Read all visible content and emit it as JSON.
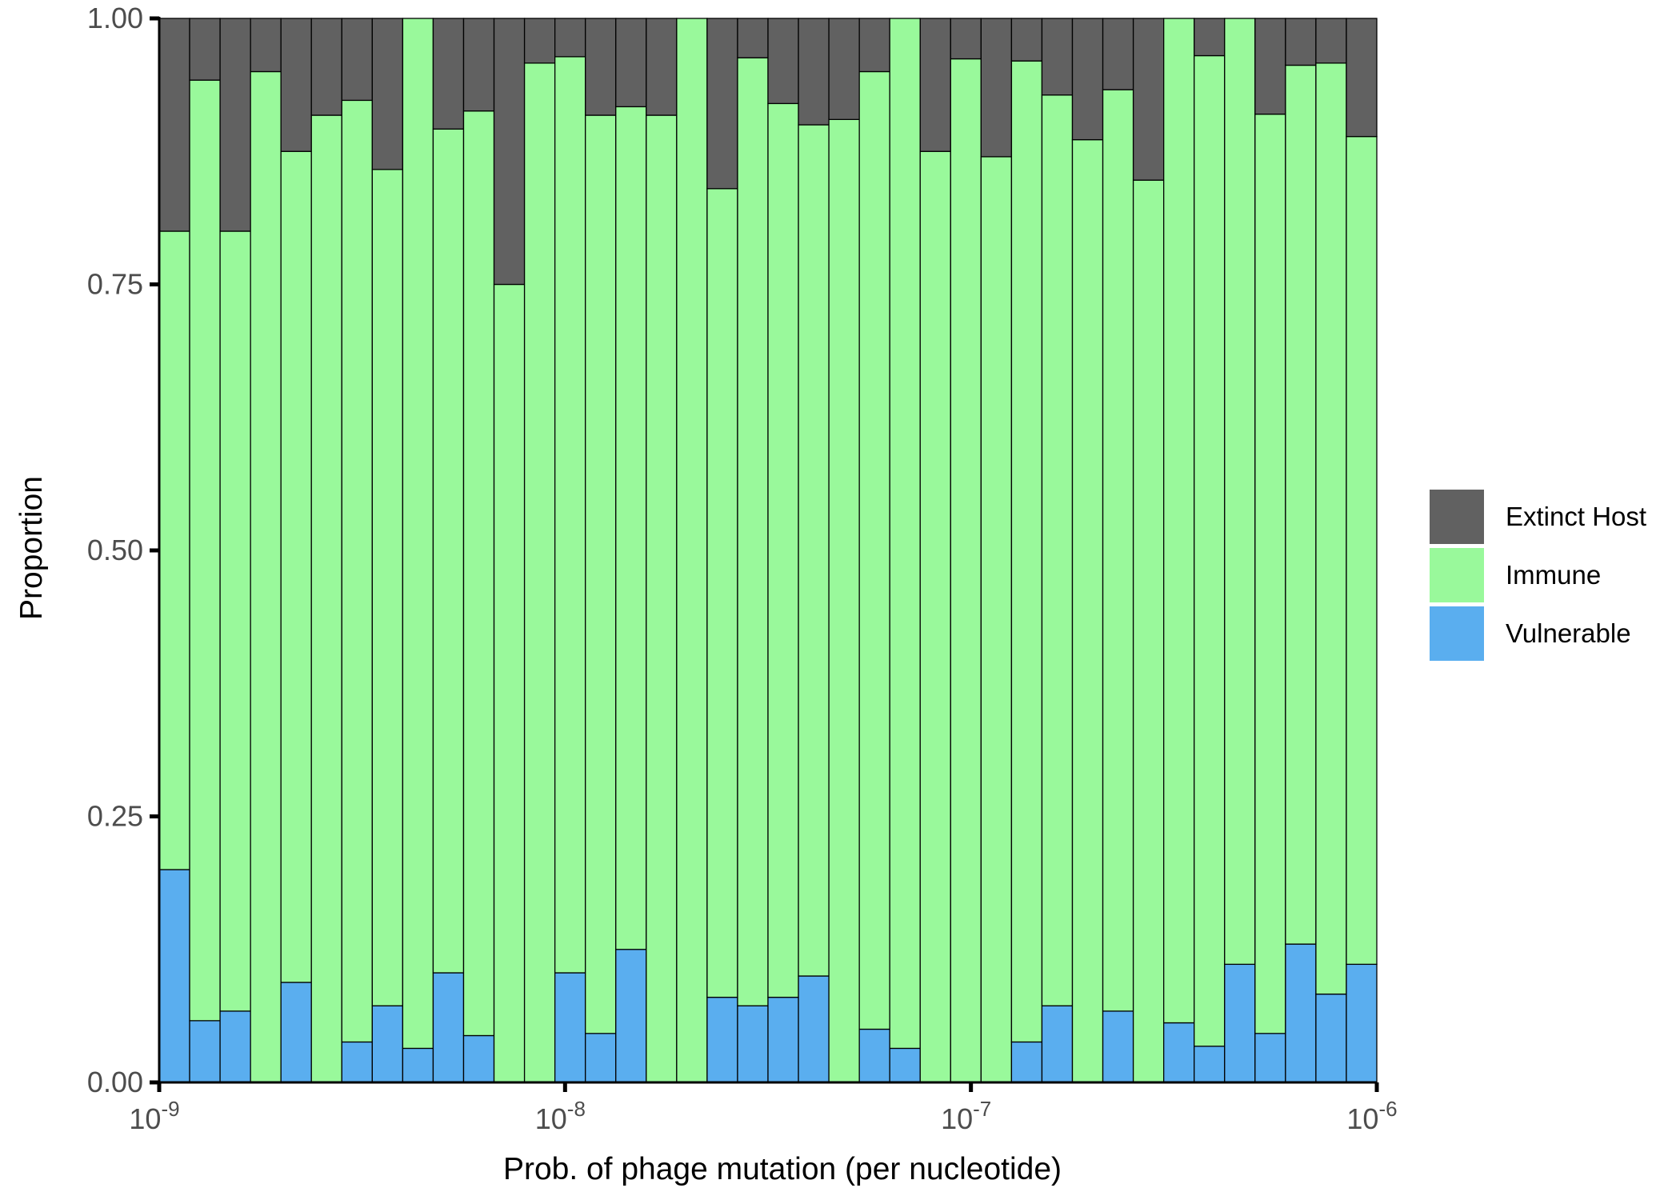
{
  "chart_data": {
    "type": "bar",
    "stacked": true,
    "title": "",
    "xlabel": "Prob. of phage mutation (per nucleotide)",
    "ylabel": "Proportion",
    "x_scale": "log10",
    "x_range": [
      1e-09,
      1e-06
    ],
    "ylim": [
      0,
      1
    ],
    "grid": false,
    "legend_position": "right",
    "x_ticks": [
      {
        "value": 1e-09,
        "base": "10",
        "exp": "-9"
      },
      {
        "value": 1e-08,
        "base": "10",
        "exp": "-8"
      },
      {
        "value": 1e-07,
        "base": "10",
        "exp": "-7"
      },
      {
        "value": 1e-06,
        "base": "10",
        "exp": "-6"
      }
    ],
    "y_ticks": [
      {
        "value": 0.0,
        "label": "0.00"
      },
      {
        "value": 0.25,
        "label": "0.25"
      },
      {
        "value": 0.5,
        "label": "0.50"
      },
      {
        "value": 0.75,
        "label": "0.75"
      },
      {
        "value": 1.0,
        "label": "1.00"
      }
    ],
    "x_bin_centers_log10": [
      -9.0,
      -8.92,
      -8.85,
      -8.77,
      -8.69,
      -8.62,
      -8.54,
      -8.46,
      -8.38,
      -8.31,
      -8.23,
      -8.15,
      -8.08,
      -8.0,
      -7.92,
      -7.85,
      -7.77,
      -7.69,
      -7.62,
      -7.54,
      -7.46,
      -7.38,
      -7.31,
      -7.23,
      -7.15,
      -7.08,
      -7.0,
      -6.92,
      -6.85,
      -6.77,
      -6.69,
      -6.62,
      -6.54,
      -6.46,
      -6.38,
      -6.31,
      -6.23,
      -6.15,
      -6.08,
      -6.0
    ],
    "series": [
      {
        "name": "Vulnerable",
        "color": "#5aaeef",
        "values": [
          0.2,
          0.058,
          0.067,
          0.0,
          0.094,
          0.0,
          0.038,
          0.072,
          0.032,
          0.103,
          0.044,
          0.0,
          0.0,
          0.103,
          0.046,
          0.125,
          0.0,
          0.0,
          0.08,
          0.072,
          0.08,
          0.1,
          0.0,
          0.05,
          0.032,
          0.0,
          0.0,
          0.0,
          0.038,
          0.072,
          0.0,
          0.067,
          0.0,
          0.056,
          0.034,
          0.111,
          0.046,
          0.13,
          0.083,
          0.111
        ]
      },
      {
        "name": "Immune",
        "color": "#99f99b",
        "values": [
          0.6,
          0.884,
          0.733,
          0.95,
          0.781,
          0.909,
          0.885,
          0.786,
          0.968,
          0.793,
          0.869,
          0.75,
          0.958,
          0.861,
          0.863,
          0.792,
          0.909,
          1.0,
          0.76,
          0.891,
          0.84,
          0.8,
          0.905,
          0.9,
          0.968,
          0.875,
          0.962,
          0.87,
          0.922,
          0.856,
          0.886,
          0.866,
          0.848,
          0.944,
          0.931,
          0.889,
          0.864,
          0.826,
          0.875,
          0.778
        ]
      },
      {
        "name": "Extinct Host",
        "color": "#616161",
        "values": [
          0.2,
          0.058,
          0.2,
          0.05,
          0.125,
          0.091,
          0.077,
          0.142,
          0.0,
          0.104,
          0.087,
          0.25,
          0.042,
          0.036,
          0.091,
          0.083,
          0.091,
          0.0,
          0.16,
          0.037,
          0.08,
          0.1,
          0.095,
          0.05,
          0.0,
          0.125,
          0.038,
          0.13,
          0.04,
          0.072,
          0.114,
          0.067,
          0.152,
          0.0,
          0.035,
          0.0,
          0.09,
          0.044,
          0.042,
          0.111
        ]
      }
    ]
  },
  "legend": {
    "items": [
      {
        "label": "Extinct Host",
        "color": "#616161"
      },
      {
        "label": "Immune",
        "color": "#99f99b"
      },
      {
        "label": "Vulnerable",
        "color": "#5aaeef"
      }
    ]
  }
}
